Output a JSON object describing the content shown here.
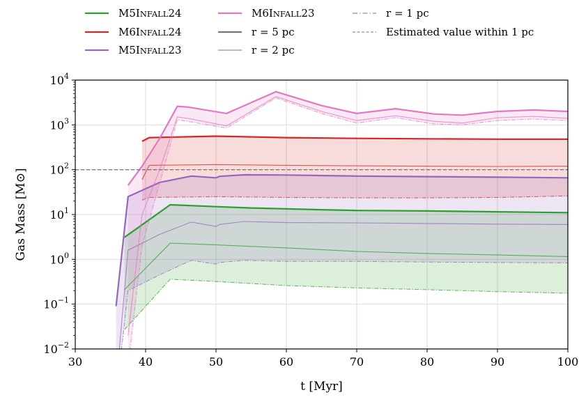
{
  "chart_data": {
    "type": "line",
    "xlabel": "t [Myr]",
    "ylabel": "Gas Mass [M⊙]",
    "xlim": [
      30,
      100
    ],
    "ylim": [
      0.01,
      10000
    ],
    "yscale": "log",
    "grid": true,
    "x_ticks": [
      "30",
      "40",
      "50",
      "60",
      "70",
      "80",
      "90",
      "100"
    ],
    "y_ticks": [
      {
        "base": "10",
        "exp": "−2"
      },
      {
        "base": "10",
        "exp": "−1"
      },
      {
        "base": "10",
        "exp": "0"
      },
      {
        "base": "10",
        "exp": "1"
      },
      {
        "base": "10",
        "exp": "2"
      },
      {
        "base": "10",
        "exp": "3"
      },
      {
        "base": "10",
        "exp": "4"
      }
    ],
    "estimated_value_1pc": 100,
    "legend_placement": "top, above plot",
    "legend": [
      {
        "label": "M5Infall24",
        "style": "thick",
        "color": "#2ca02c"
      },
      {
        "label": "M6Infall24",
        "style": "thick",
        "color": "#d62728"
      },
      {
        "label": "M5Infall23",
        "style": "thick",
        "color": "#9467bd"
      },
      {
        "label": "M6Infall23",
        "style": "thick",
        "color": "#e377c2"
      },
      {
        "label": "r = 5 pc",
        "style": "thick",
        "color": "#777777"
      },
      {
        "label": "r = 2 pc",
        "style": "thin",
        "color": "#777777"
      },
      {
        "label": "r = 1 pc",
        "style": "dashdot",
        "color": "#777777"
      },
      {
        "label": "Estimated value  within 1 pc",
        "style": "dashed",
        "color": "#777777"
      }
    ],
    "series": [
      {
        "name": "M5Infall24",
        "color": "#2ca02c",
        "r5": [
          [
            37,
            3.1
          ],
          [
            43.5,
            16.5
          ],
          [
            50,
            15
          ],
          [
            55,
            14
          ],
          [
            65,
            12.8
          ],
          [
            70,
            12.3
          ],
          [
            80,
            12
          ],
          [
            90,
            11.5
          ],
          [
            100,
            11
          ]
        ],
        "r2": [
          [
            37,
            0.21
          ],
          [
            43.5,
            2.3
          ],
          [
            50,
            2.1
          ],
          [
            60,
            1.8
          ],
          [
            70,
            1.5
          ],
          [
            80,
            1.35
          ],
          [
            90,
            1.25
          ],
          [
            100,
            1.15
          ]
        ],
        "r1": [
          [
            37,
            0.027
          ],
          [
            43.5,
            0.36
          ],
          [
            50,
            0.32
          ],
          [
            60,
            0.26
          ],
          [
            70,
            0.23
          ],
          [
            80,
            0.21
          ],
          [
            90,
            0.19
          ],
          [
            100,
            0.175
          ]
        ]
      },
      {
        "name": "M6Infall24",
        "color": "#d62728",
        "r5": [
          [
            39.5,
            430
          ],
          [
            40.5,
            520
          ],
          [
            50,
            560
          ],
          [
            60,
            520
          ],
          [
            70,
            500
          ],
          [
            80,
            490
          ],
          [
            90,
            480
          ],
          [
            100,
            480
          ]
        ],
        "r2": [
          [
            39.5,
            60
          ],
          [
            40.5,
            125
          ],
          [
            50,
            130
          ],
          [
            60,
            125
          ],
          [
            70,
            122
          ],
          [
            80,
            120
          ],
          [
            90,
            118
          ],
          [
            100,
            120
          ]
        ],
        "r1": [
          [
            39.5,
            21
          ],
          [
            40.5,
            24
          ],
          [
            50,
            25
          ],
          [
            60,
            24
          ],
          [
            70,
            23.5
          ],
          [
            80,
            23.5
          ],
          [
            90,
            24
          ],
          [
            100,
            26
          ]
        ]
      },
      {
        "name": "M5Infall23",
        "color": "#9467bd",
        "r5": [
          [
            35.8,
            0.09
          ],
          [
            37.5,
            25
          ],
          [
            42,
            52
          ],
          [
            46.5,
            72
          ],
          [
            50,
            66
          ],
          [
            50.5,
            71
          ],
          [
            54,
            77
          ],
          [
            60,
            76
          ],
          [
            70,
            72
          ],
          [
            80,
            70
          ],
          [
            90,
            68
          ],
          [
            100,
            66
          ]
        ],
        "r2": [
          [
            35.8,
            0.0015
          ],
          [
            37.5,
            1.6
          ],
          [
            42,
            3.6
          ],
          [
            46.5,
            6.8
          ],
          [
            50,
            5.4
          ],
          [
            50.5,
            6
          ],
          [
            54,
            7
          ],
          [
            60,
            6.6
          ],
          [
            70,
            6.5
          ],
          [
            80,
            6.3
          ],
          [
            90,
            6.1
          ],
          [
            100,
            6
          ]
        ],
        "r1": [
          [
            35.8,
            0.0008
          ],
          [
            37.5,
            0.2
          ],
          [
            42,
            0.45
          ],
          [
            46.5,
            0.95
          ],
          [
            50,
            0.78
          ],
          [
            50.5,
            0.85
          ],
          [
            54,
            0.95
          ],
          [
            60,
            0.9
          ],
          [
            70,
            0.9
          ],
          [
            80,
            0.87
          ],
          [
            90,
            0.85
          ],
          [
            100,
            0.83
          ]
        ]
      },
      {
        "name": "M6Infall23",
        "color": "#e377c2",
        "r5": [
          [
            37.5,
            45
          ],
          [
            39.5,
            120
          ],
          [
            42,
            500
          ],
          [
            44.5,
            2600
          ],
          [
            46,
            2500
          ],
          [
            51.5,
            1800
          ],
          [
            58.5,
            5500
          ],
          [
            65,
            2700
          ],
          [
            70,
            1800
          ],
          [
            75.5,
            2300
          ],
          [
            81,
            1750
          ],
          [
            85,
            1650
          ],
          [
            90,
            2000
          ],
          [
            95,
            2150
          ],
          [
            100,
            2000
          ]
        ],
        "r2": [
          [
            37.5,
            0.02
          ],
          [
            39.5,
            10
          ],
          [
            42,
            100
          ],
          [
            44.5,
            1500
          ],
          [
            46,
            1400
          ],
          [
            51.5,
            950
          ],
          [
            58.5,
            4300
          ],
          [
            65,
            2000
          ],
          [
            70,
            1250
          ],
          [
            75.5,
            1600
          ],
          [
            81,
            1200
          ],
          [
            85,
            1100
          ],
          [
            90,
            1450
          ],
          [
            95,
            1550
          ],
          [
            100,
            1400
          ]
        ],
        "r1": [
          [
            37.5,
            0.004
          ],
          [
            39.5,
            2
          ],
          [
            42,
            50
          ],
          [
            44.5,
            1300
          ],
          [
            46,
            1200
          ],
          [
            51.5,
            850
          ],
          [
            58.5,
            4000
          ],
          [
            65,
            1800
          ],
          [
            70,
            1100
          ],
          [
            75.5,
            1450
          ],
          [
            81,
            1050
          ],
          [
            85,
            1000
          ],
          [
            90,
            1250
          ],
          [
            95,
            1350
          ],
          [
            100,
            1250
          ]
        ]
      }
    ]
  }
}
